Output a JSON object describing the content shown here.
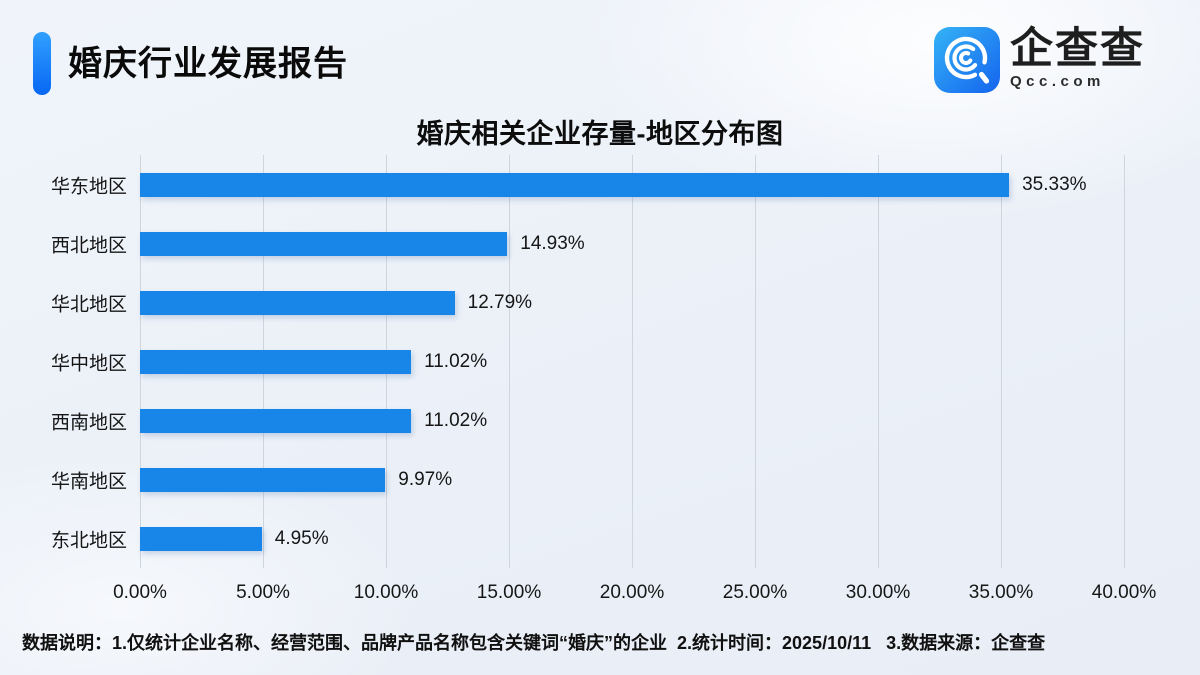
{
  "header": {
    "title": "婚庆行业发展报告",
    "accent_color_top": "#31a0ff",
    "accent_color_bottom": "#0767f3"
  },
  "logo": {
    "brand": "企查查",
    "domain": "Qcc.com",
    "icon": "qcc-magnifier-icon",
    "icon_color_top": "#35b3f6",
    "icon_color_bottom": "#1464ee"
  },
  "chart_data": {
    "type": "bar",
    "orientation": "horizontal",
    "title": "婚庆相关企业存量-地区分布图",
    "categories": [
      "华东地区",
      "西北地区",
      "华北地区",
      "华中地区",
      "西南地区",
      "华南地区",
      "东北地区"
    ],
    "values": [
      35.33,
      14.93,
      12.79,
      11.02,
      11.02,
      9.97,
      4.95
    ],
    "value_labels": [
      "35.33%",
      "14.93%",
      "12.79%",
      "11.02%",
      "11.02%",
      "9.97%",
      "4.95%"
    ],
    "x_tick_labels": [
      "0.00%",
      "5.00%",
      "10.00%",
      "15.00%",
      "20.00%",
      "25.00%",
      "30.00%",
      "35.00%",
      "40.00%"
    ],
    "x_tick_values": [
      0,
      5,
      10,
      15,
      20,
      25,
      30,
      35,
      40
    ],
    "xlim": [
      0,
      40
    ],
    "grid": true,
    "legend": false,
    "bar_color": "#1886e8",
    "gridline_color": "#cfd5dd"
  },
  "footer": {
    "note": "数据说明：1.仅统计企业名称、经营范围、品牌产品名称包含关键词“婚庆”的企业  2.统计时间：2025/10/11   3.数据来源：企查查"
  }
}
